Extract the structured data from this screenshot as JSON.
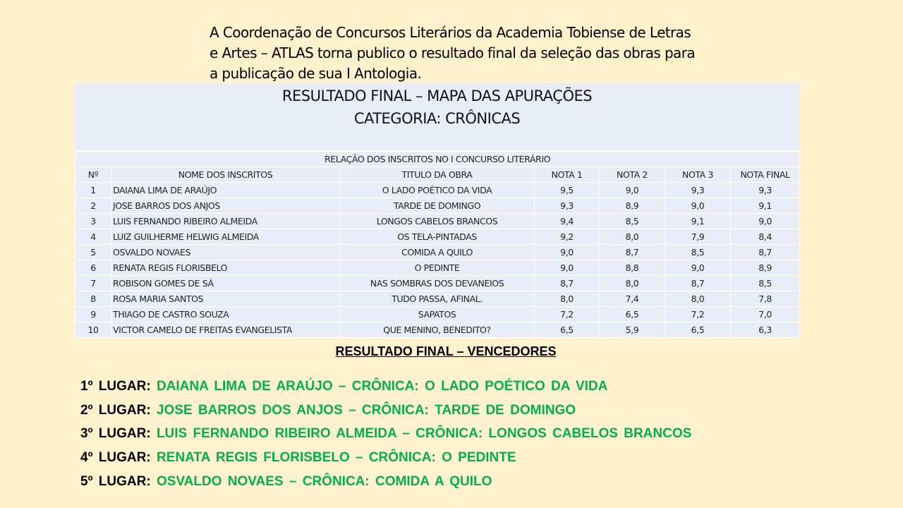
{
  "intro": {
    "lines": [
      "A Coordenação de Concursos Literários da Academia  Tobiense de Letras",
      "e Artes – ATLAS torna publico o resultado final da seleção das obras para",
      "a publicação de sua I Antologia."
    ]
  },
  "table": {
    "title": "RESULTADO FINAL – MAPA DAS APURAÇÕES",
    "subtitle": "CATEGORIA: CRÔNICAS",
    "caption": "RELAÇÃO DOS INSCRITOS NO I CONCURSO LITERÁRIO",
    "headers": [
      "Nº",
      "NOME DOS INSCRITOS",
      "TITULO DA OBRA",
      "NOTA 1",
      "NOTA 2",
      "NOTA 3",
      "NOTA FINAL"
    ],
    "rows": [
      [
        "1",
        "DAIANA LIMA DE ARAÚJO",
        "O LADO POÉTICO DA VIDA",
        "9,5",
        "9,0",
        "9,3",
        "9,3"
      ],
      [
        "2",
        "JOSE BARROS DOS ANJOS",
        "TARDE DE DOMINGO",
        "9,3",
        "8,9",
        "9,0",
        "9,1"
      ],
      [
        "3",
        "LUIS FERNANDO RIBEIRO ALMEIDA",
        "LONGOS CABELOS BRANCOS",
        "9,4",
        "8,5",
        "9,1",
        "9,0"
      ],
      [
        "4",
        "LUIZ GUILHERME HELWIG ALMEIDA",
        "OS TELA-PINTADAS",
        "9,2",
        "8,0",
        "7,9",
        "8,4"
      ],
      [
        "5",
        "OSVALDO NOVAES",
        "COMIDA  A  QUILO",
        "9,0",
        "8,7",
        "8,5",
        "8,7"
      ],
      [
        "6",
        "RENATA REGIS FLORISBELO",
        "O PEDINTE",
        "9,0",
        "8,8",
        "9,0",
        "8,9"
      ],
      [
        "7",
        "ROBISON GOMES DE SÁ",
        "NAS SOMBRAS DOS DEVANEIOS",
        "8,7",
        "8,0",
        "8,7",
        "8,5"
      ],
      [
        "8",
        "ROSA MARIA SANTOS",
        "TUDO PASSA,  AFINAL.",
        "8,0",
        "7,4",
        "8,0",
        "7,8"
      ],
      [
        "9",
        "THIAGO DE CASTRO SOUZA",
        "SAPATOS",
        "7,2",
        "6,5",
        "7,2",
        "7,0"
      ],
      [
        "10",
        "VICTOR CAMELO DE FREITAS EVANGELISTA",
        "QUE MENINO, BENEDITO?",
        "6,5",
        "5,9",
        "6,5",
        "6,3"
      ]
    ]
  },
  "winners": {
    "heading": "RESULTADO  FINAL  – VENCEDORES",
    "items": [
      {
        "place": "1º LUGAR:",
        "text": "DAIANA  LIMA  DE ARAÚJO  – CRÔNICA:  O LADO  POÉTICO  DA VIDA"
      },
      {
        "place": "2º LUGAR:",
        "text": "JOSE BARROS DOS ANJOS – CRÔNICA:   TARDE DE DOMINGO"
      },
      {
        "place": "3º LUGAR:",
        "text": "LUIS  FERNANDO  RIBEIRO  ALMEIDA – CRÔNICA:  LONGOS  CABELOS  BRANCOS"
      },
      {
        "place": "4º LUGAR:",
        "text": "RENATA  REGIS  FLORISBELO  – CRÔNICA:  O  PEDINTE"
      },
      {
        "place": "5º LUGAR:",
        "text": "OSVALDO  NOVAES  – CRÔNICA:   COMIDA  A QUILO"
      }
    ]
  },
  "colors": {
    "background": "#fff2cc",
    "table": "#e9edf7",
    "winner_text": "#00b050"
  }
}
